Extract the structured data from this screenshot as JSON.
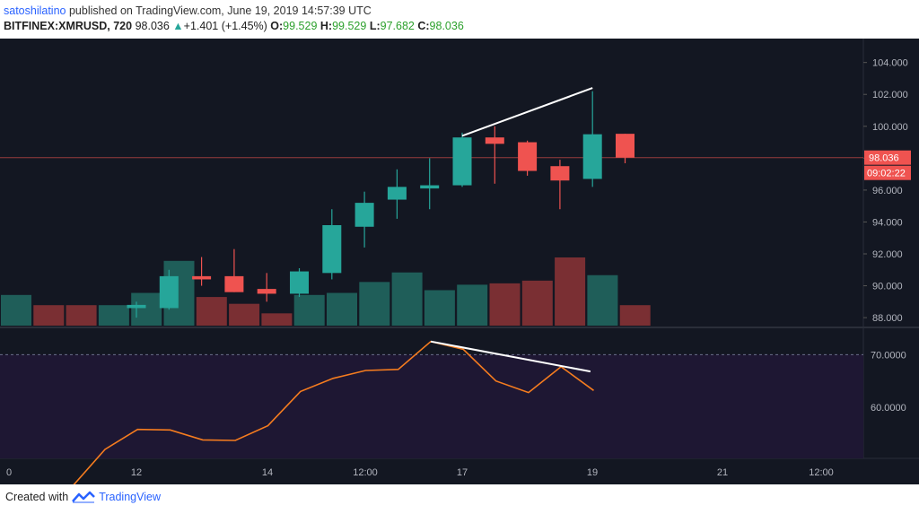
{
  "header": {
    "author": "satoshilatino",
    "published_text": "published on TradingView.com, June 19, 2019 14:57:39 UTC",
    "symbol": "BITFINEX:XMRUSD, 720",
    "last_price": "98.036",
    "change": "+1.401 (+1.45%)",
    "o_label": "O:",
    "o_value": "99.529",
    "h_label": "H:",
    "h_value": "99.529",
    "l_label": "L:",
    "l_value": "97.682",
    "c_label": "C:",
    "c_value": "98.036"
  },
  "footer": {
    "created_with": "Created with",
    "brand": "TradingView",
    "logo_icon": "tradingview-logo-icon"
  },
  "colors": {
    "background": "#131722",
    "up": "#26a69a",
    "down": "#ef5350",
    "volume_up": "#1f5e59",
    "volume_down": "#7a2f33",
    "rsi_line": "#f57c1f",
    "rsi_band": "#1e1733",
    "price_label_bg": "#ef5350",
    "trendline": "#ffffff"
  },
  "chart_data": {
    "type": "candlestick",
    "price_axis": {
      "ticks": [
        "104.000",
        "102.000",
        "100.000",
        "98.000",
        "96.000",
        "94.000",
        "92.000",
        "90.000",
        "88.000"
      ],
      "range": [
        87.5,
        105.5
      ]
    },
    "time_axis": {
      "labels": [
        "0",
        "12",
        "14",
        "12:00",
        "17",
        "19",
        "21",
        "12:00"
      ]
    },
    "current_price_label": "98.036",
    "countdown_label": "09:02:22",
    "candles": [
      {
        "o": 88.6,
        "h": 89.0,
        "l": 88.0,
        "c": 88.8
      },
      {
        "o": 88.6,
        "h": 91.0,
        "l": 88.5,
        "c": 90.6
      },
      {
        "o": 90.6,
        "h": 91.8,
        "l": 90.0,
        "c": 90.4
      },
      {
        "o": 90.6,
        "h": 92.3,
        "l": 89.6,
        "c": 89.6
      },
      {
        "o": 89.8,
        "h": 90.8,
        "l": 89.0,
        "c": 89.5
      },
      {
        "o": 89.5,
        "h": 91.1,
        "l": 89.3,
        "c": 90.9
      },
      {
        "o": 90.8,
        "h": 94.8,
        "l": 90.4,
        "c": 93.8
      },
      {
        "o": 93.7,
        "h": 95.9,
        "l": 92.4,
        "c": 95.2
      },
      {
        "o": 95.4,
        "h": 97.3,
        "l": 94.2,
        "c": 96.2
      },
      {
        "o": 96.1,
        "h": 98.0,
        "l": 94.8,
        "c": 96.3
      },
      {
        "o": 96.3,
        "h": 99.6,
        "l": 96.2,
        "c": 99.3
      },
      {
        "o": 99.3,
        "h": 100.0,
        "l": 96.4,
        "c": 98.9
      },
      {
        "o": 99.0,
        "h": 99.1,
        "l": 96.9,
        "c": 97.2
      },
      {
        "o": 97.5,
        "h": 97.9,
        "l": 94.8,
        "c": 96.6
      },
      {
        "o": 96.7,
        "h": 102.2,
        "l": 96.2,
        "c": 99.5
      },
      {
        "o": 99.529,
        "h": 99.529,
        "l": 97.682,
        "c": 98.036
      }
    ],
    "volume_relative": [
      0.45,
      0.3,
      0.3,
      0.3,
      0.48,
      0.95,
      0.42,
      0.32,
      0.18,
      0.45,
      0.48,
      0.64,
      0.78,
      0.52,
      0.6,
      0.62,
      0.66,
      1.0,
      0.74,
      0.3
    ],
    "volume_direction": [
      "up",
      "down",
      "down",
      "up",
      "up",
      "up",
      "down",
      "down",
      "down",
      "up",
      "up",
      "up",
      "up",
      "up",
      "up",
      "down",
      "down",
      "down",
      "up",
      "down"
    ],
    "price_trendline": [
      [
        10,
        99.4
      ],
      [
        14,
        102.4
      ]
    ],
    "rsi": {
      "ticks": [
        "70.0000",
        "60.0000"
      ],
      "overbought": 70,
      "range": [
        52,
        75
      ],
      "values": [
        45.0,
        52.0,
        55.8,
        55.7,
        53.8,
        53.7,
        56.5,
        63.0,
        65.5,
        67.0,
        67.2,
        72.5,
        71.0,
        65.0,
        62.8,
        67.7,
        63.2
      ],
      "trendline": [
        [
          11,
          72.5
        ],
        [
          15.9,
          66.8
        ]
      ]
    }
  }
}
